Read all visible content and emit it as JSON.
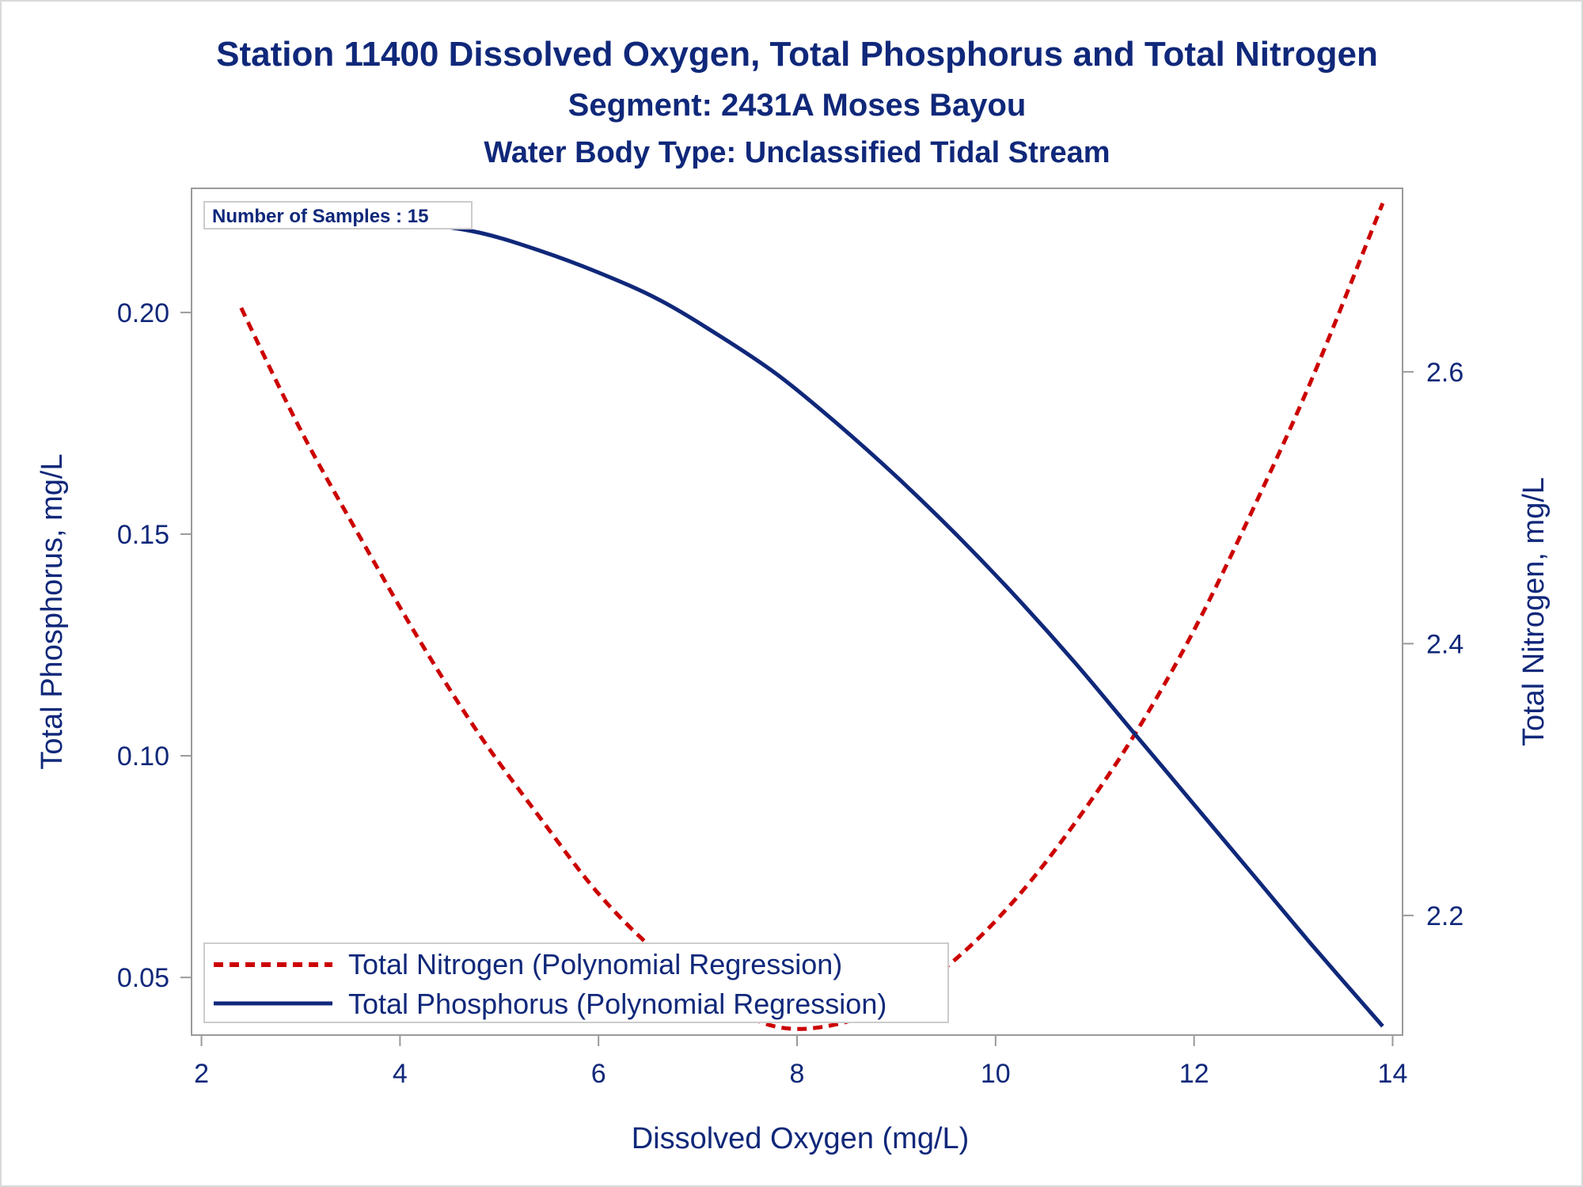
{
  "chart_data": {
    "type": "line",
    "title": "Station 11400  Dissolved Oxygen, Total Phosphorus and Total Nitrogen",
    "subtitle": "Segment: 2431A  Moses Bayou",
    "subtitle2": "Water Body Type: Unclassified Tidal Stream",
    "xlabel": "Dissolved Oxygen (mg/L)",
    "ylabel_left": "Total Phosphorus, mg/L",
    "ylabel_right": "Total Nitrogen, mg/L",
    "xlim": [
      1.9,
      14.1
    ],
    "ylim_left": [
      0.037,
      0.228
    ],
    "ylim_right": [
      2.112,
      2.735
    ],
    "x_ticks": [
      2,
      4,
      6,
      8,
      10,
      12,
      14
    ],
    "x_tick_labels": [
      "2",
      "4",
      "6",
      "8",
      "10",
      "12",
      "14"
    ],
    "y_left_ticks": [
      0.05,
      0.1,
      0.15,
      0.2
    ],
    "y_left_tick_labels": [
      "0.05",
      "0.10",
      "0.15",
      "0.20"
    ],
    "y_right_ticks": [
      2.2,
      2.4,
      2.6
    ],
    "y_right_tick_labels": [
      "2.2",
      "2.4",
      "2.6"
    ],
    "grid": false,
    "inset_label": "Number of Samples : 15",
    "legend_position": "bottom-left",
    "series": [
      {
        "name": "Total Nitrogen (Polynomial Regression)",
        "axis": "right",
        "color": "#cc0000",
        "dash": "dashed",
        "x": [
          2.4,
          3.0,
          3.6,
          4.2,
          4.8,
          5.4,
          6.0,
          6.6,
          7.2,
          7.8,
          8.4,
          9.0,
          9.6,
          10.2,
          10.8,
          11.4,
          12.0,
          12.6,
          13.2,
          13.9
        ],
        "y": [
          2.647,
          2.557,
          2.478,
          2.402,
          2.333,
          2.273,
          2.216,
          2.172,
          2.138,
          2.118,
          2.12,
          2.137,
          2.168,
          2.212,
          2.268,
          2.333,
          2.41,
          2.5,
          2.597,
          2.724
        ]
      },
      {
        "name": "Total Phosphorus (Polynomial Regression)",
        "axis": "left",
        "color": "#10287a",
        "dash": "solid",
        "x": [
          2.4,
          3.0,
          3.6,
          4.2,
          4.8,
          5.4,
          6.0,
          6.6,
          7.2,
          7.8,
          8.4,
          9.0,
          9.6,
          10.2,
          10.8,
          11.4,
          12.0,
          12.6,
          13.2,
          13.9
        ],
        "y": [
          0.221,
          0.222,
          0.221,
          0.22,
          0.218,
          0.214,
          0.209,
          0.203,
          0.195,
          0.186,
          0.175,
          0.163,
          0.15,
          0.136,
          0.121,
          0.105,
          0.089,
          0.073,
          0.057,
          0.039
        ]
      }
    ]
  },
  "colors": {
    "text": "#10287a",
    "nitrogen": "#cc0000",
    "phosphorus": "#10287a",
    "axis_frame": "#9a9a9a"
  }
}
